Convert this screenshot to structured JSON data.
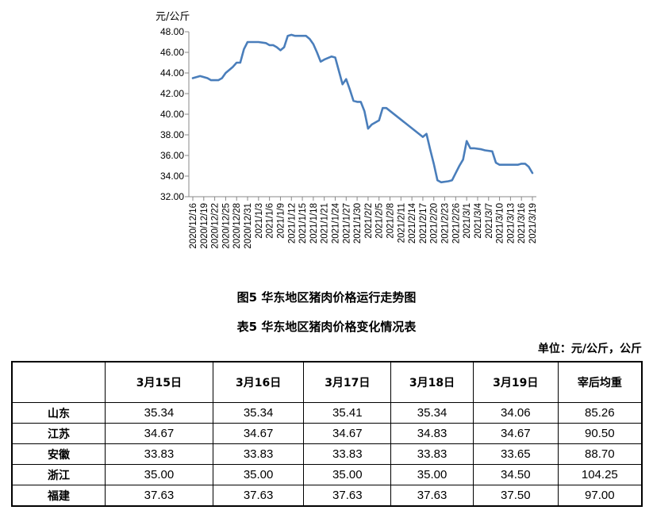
{
  "chart_data": {
    "type": "line",
    "unit_label": "元/公斤",
    "ylim": [
      32.0,
      48.0
    ],
    "y_ticks": [
      "32.00",
      "34.00",
      "36.00",
      "38.00",
      "40.00",
      "42.00",
      "44.00",
      "46.00",
      "48.00"
    ],
    "color": "#4a7ebb",
    "x_tick_labels": [
      "2020/12/16",
      "2020/12/19",
      "2020/12/22",
      "2020/12/25",
      "2020/12/28",
      "2020/12/31",
      "2021/1/3",
      "2021/1/6",
      "2021/1/9",
      "2021/1/12",
      "2021/1/15",
      "2021/1/18",
      "2021/1/21",
      "2021/1/24",
      "2021/1/27",
      "2021/1/30",
      "2021/2/2",
      "2021/2/5",
      "2021/2/8",
      "2021/2/11",
      "2021/2/14",
      "2021/2/17",
      "2021/2/20",
      "2021/2/23",
      "2021/2/26",
      "2021/3/1",
      "2021/3/4",
      "2021/3/7",
      "2021/3/10",
      "2021/3/13",
      "2021/3/16",
      "2021/3/19"
    ],
    "series": [
      {
        "points": [
          [
            "2020/12/16",
            43.5
          ],
          [
            "2020/12/18",
            43.7
          ],
          [
            "2020/12/20",
            43.5
          ],
          [
            "2020/12/21",
            43.3
          ],
          [
            "2020/12/23",
            43.3
          ],
          [
            "2020/12/24",
            43.5
          ],
          [
            "2020/12/25",
            44.0
          ],
          [
            "2020/12/26",
            44.3
          ],
          [
            "2020/12/27",
            44.6
          ],
          [
            "2020/12/28",
            45.0
          ],
          [
            "2020/12/29",
            45.0
          ],
          [
            "2020/12/30",
            46.3
          ],
          [
            "2020/12/31",
            47.0
          ],
          [
            "2021/1/1",
            47.0
          ],
          [
            "2021/1/3",
            47.0
          ],
          [
            "2021/1/5",
            46.9
          ],
          [
            "2021/1/6",
            46.7
          ],
          [
            "2021/1/7",
            46.7
          ],
          [
            "2021/1/8",
            46.5
          ],
          [
            "2021/1/9",
            46.2
          ],
          [
            "2021/1/10",
            46.5
          ],
          [
            "2021/1/11",
            47.6
          ],
          [
            "2021/1/12",
            47.7
          ],
          [
            "2021/1/13",
            47.6
          ],
          [
            "2021/1/14",
            47.6
          ],
          [
            "2021/1/16",
            47.6
          ],
          [
            "2021/1/17",
            47.3
          ],
          [
            "2021/1/18",
            46.8
          ],
          [
            "2021/1/19",
            46.0
          ],
          [
            "2021/1/20",
            45.1
          ],
          [
            "2021/1/21",
            45.3
          ],
          [
            "2021/1/23",
            45.6
          ],
          [
            "2021/1/24",
            45.5
          ],
          [
            "2021/1/25",
            44.2
          ],
          [
            "2021/1/26",
            42.9
          ],
          [
            "2021/1/27",
            43.4
          ],
          [
            "2021/1/28",
            42.4
          ],
          [
            "2021/1/29",
            41.3
          ],
          [
            "2021/1/30",
            41.2
          ],
          [
            "2021/1/31",
            41.2
          ],
          [
            "2021/2/1",
            40.3
          ],
          [
            "2021/2/2",
            38.6
          ],
          [
            "2021/2/3",
            39.0
          ],
          [
            "2021/2/4",
            39.2
          ],
          [
            "2021/2/5",
            39.4
          ],
          [
            "2021/2/6",
            40.6
          ],
          [
            "2021/2/7",
            40.6
          ],
          [
            "2021/2/17",
            37.8
          ],
          [
            "2021/2/18",
            38.1
          ],
          [
            "2021/2/19",
            36.6
          ],
          [
            "2021/2/20",
            35.2
          ],
          [
            "2021/2/21",
            33.6
          ],
          [
            "2021/2/22",
            33.4
          ],
          [
            "2021/2/24",
            33.5
          ],
          [
            "2021/2/25",
            33.6
          ],
          [
            "2021/2/26",
            34.3
          ],
          [
            "2021/2/27",
            35.0
          ],
          [
            "2021/2/28",
            35.6
          ],
          [
            "2021/3/1",
            37.4
          ],
          [
            "2021/3/2",
            36.7
          ],
          [
            "2021/3/3",
            36.7
          ],
          [
            "2021/3/5",
            36.6
          ],
          [
            "2021/3/6",
            36.5
          ],
          [
            "2021/3/8",
            36.4
          ],
          [
            "2021/3/9",
            35.3
          ],
          [
            "2021/3/10",
            35.1
          ],
          [
            "2021/3/11",
            35.1
          ],
          [
            "2021/3/15",
            35.1
          ],
          [
            "2021/3/16",
            35.2
          ],
          [
            "2021/3/17",
            35.2
          ],
          [
            "2021/3/18",
            34.9
          ],
          [
            "2021/3/19",
            34.3
          ]
        ]
      }
    ]
  },
  "fig_caption": "图5 华东地区猪肉价格运行走势图",
  "table_caption": "表5 华东地区猪肉价格变化情况表",
  "unit_note": "单位：元/公斤，公斤",
  "table": {
    "corner": "",
    "headers": [
      "3月15日",
      "3月16日",
      "3月17日",
      "3月18日",
      "3月19日",
      "宰后均重"
    ],
    "rows": [
      {
        "region": "山东",
        "values": [
          "35.34",
          "35.34",
          "35.41",
          "35.34",
          "34.06",
          "85.26"
        ]
      },
      {
        "region": "江苏",
        "values": [
          "34.67",
          "34.67",
          "34.67",
          "34.83",
          "34.67",
          "90.50"
        ]
      },
      {
        "region": "安徽",
        "values": [
          "33.83",
          "33.83",
          "33.83",
          "33.83",
          "33.65",
          "88.70"
        ]
      },
      {
        "region": "浙江",
        "values": [
          "35.00",
          "35.00",
          "35.00",
          "35.00",
          "34.50",
          "104.25"
        ]
      },
      {
        "region": "福建",
        "values": [
          "37.63",
          "37.63",
          "37.63",
          "37.63",
          "37.50",
          "97.00"
        ]
      }
    ]
  }
}
